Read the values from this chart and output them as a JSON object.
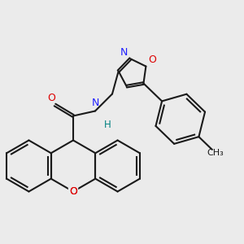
{
  "bg_color": "#ebebeb",
  "bond_color": "#1a1a1a",
  "N_color": "#2020ff",
  "O_color": "#dd0000",
  "H_color": "#008080",
  "lw": 1.5,
  "figsize": [
    3.0,
    3.0
  ],
  "dpi": 100,
  "xlim": [
    0.0,
    10.0
  ],
  "ylim": [
    0.0,
    10.0
  ]
}
